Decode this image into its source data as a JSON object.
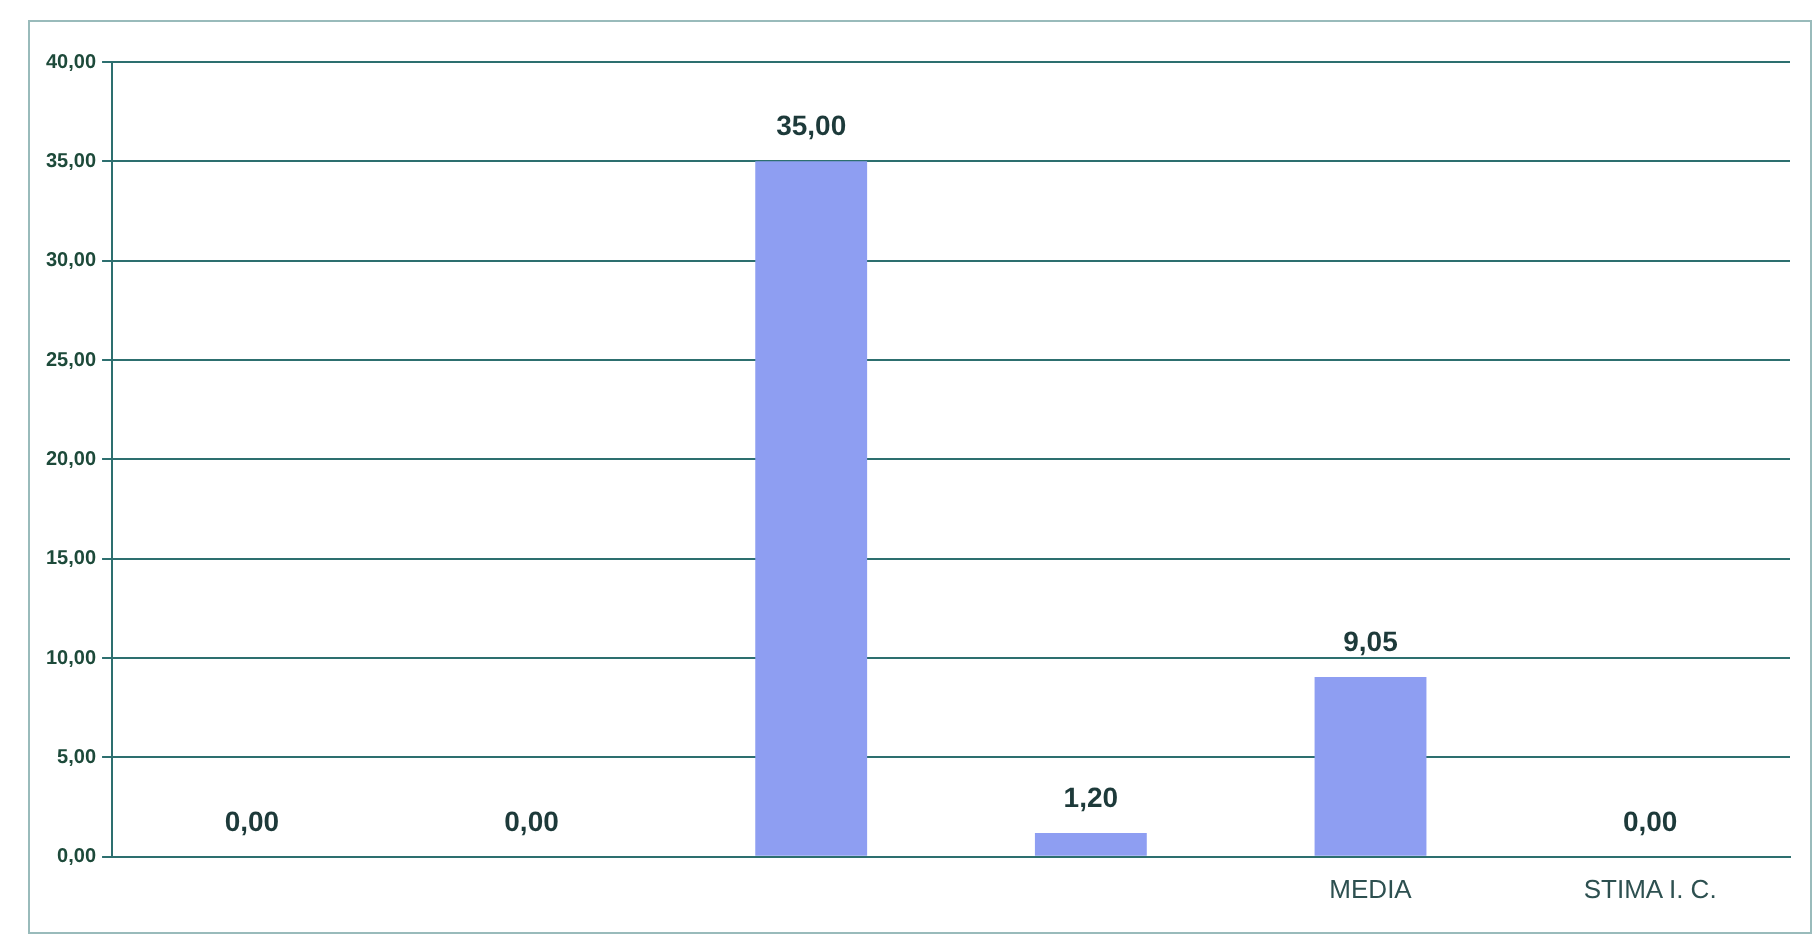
{
  "chart_data": {
    "type": "bar",
    "categories": [
      null,
      null,
      null,
      null,
      "MEDIA",
      "STIMA I. C."
    ],
    "values": [
      0,
      0,
      35,
      1.2,
      9.05,
      0
    ],
    "value_labels": [
      "0,00",
      "0,00",
      "35,00",
      "1,20",
      "9,05",
      "0,00"
    ],
    "color": "#8e9ef2",
    "ylim": [
      0,
      40
    ],
    "yticks": [
      {
        "value": 0,
        "label": "0,00"
      },
      {
        "value": 5,
        "label": "5,00"
      },
      {
        "value": 10,
        "label": "10,00"
      },
      {
        "value": 15,
        "label": "15,00"
      },
      {
        "value": 20,
        "label": "20,00"
      },
      {
        "value": 25,
        "label": "25,00"
      },
      {
        "value": 30,
        "label": "30,00"
      },
      {
        "value": 35,
        "label": "35,00"
      },
      {
        "value": 40,
        "label": "40,00"
      }
    ],
    "grid": "y",
    "legend": false
  }
}
